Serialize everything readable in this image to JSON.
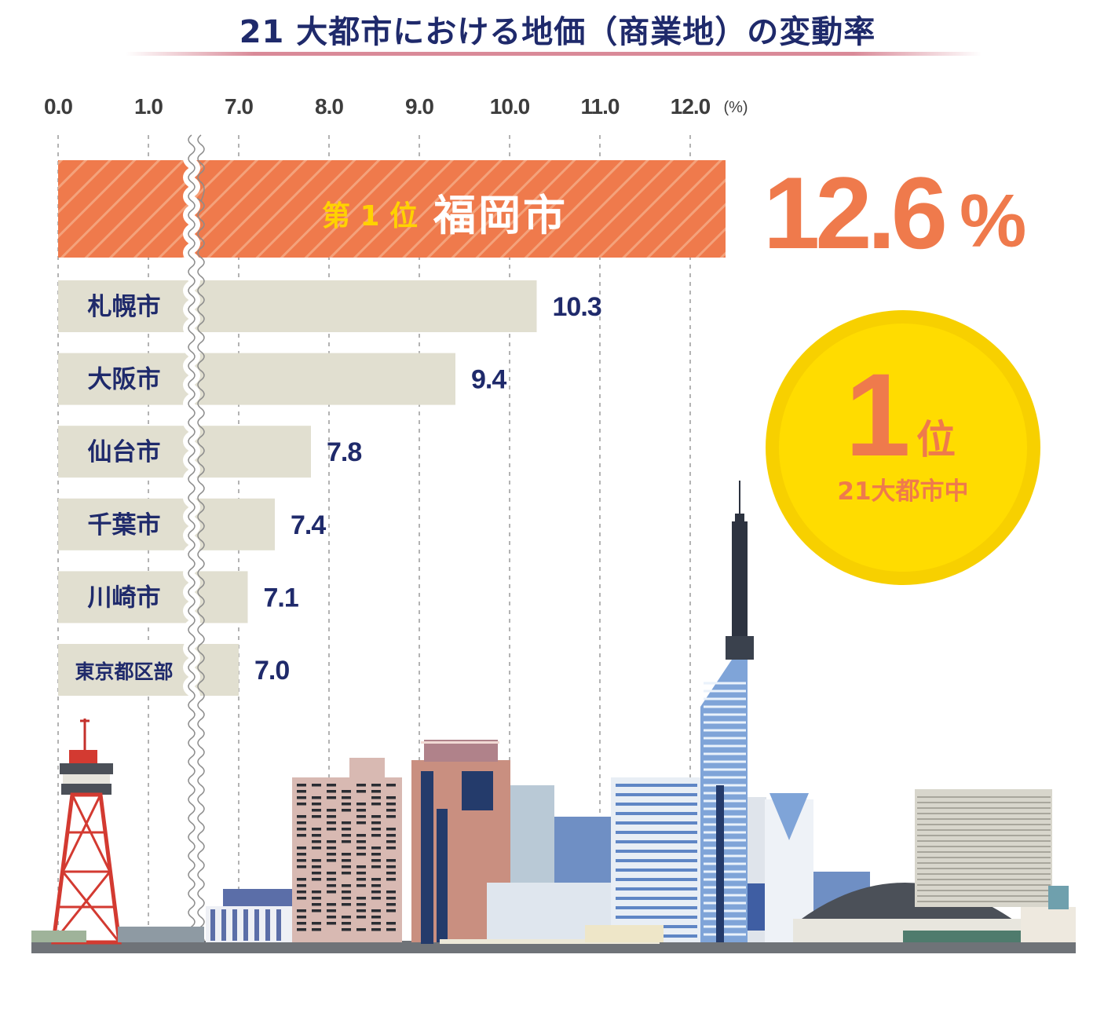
{
  "title": "21 大都市における地価（商業地）の変動率",
  "chart_data": {
    "type": "bar",
    "orientation": "horizontal",
    "axis_break": "between 1.0 and 7.0",
    "x_ticks": [
      "0.0",
      "1.0",
      "7.0",
      "8.0",
      "9.0",
      "10.0",
      "11.0",
      "12.0"
    ],
    "x_unit": "(%)",
    "grid": true,
    "categories": [
      "福岡市",
      "札幌市",
      "大阪市",
      "仙台市",
      "千葉市",
      "川崎市",
      "東京都区部"
    ],
    "values": [
      12.6,
      10.3,
      9.4,
      7.8,
      7.4,
      7.1,
      7.0
    ],
    "value_labels": [
      "12.6%",
      "10.3",
      "9.4",
      "7.8",
      "7.4",
      "7.1",
      "7.0"
    ],
    "highlight": {
      "rank_label": "第 1 位",
      "city": "福岡市",
      "value_label": "12.6",
      "percent_sign": "%"
    }
  },
  "badge": {
    "rank_number": "1",
    "rank_unit": "位",
    "subtitle": "21大都市中"
  },
  "colors": {
    "title": "#1f2a6b",
    "highlight_bar": "#ef7a4c",
    "bars": "#e1dfd0",
    "labels": "#1f2a6b",
    "badge": "#f7d000"
  }
}
